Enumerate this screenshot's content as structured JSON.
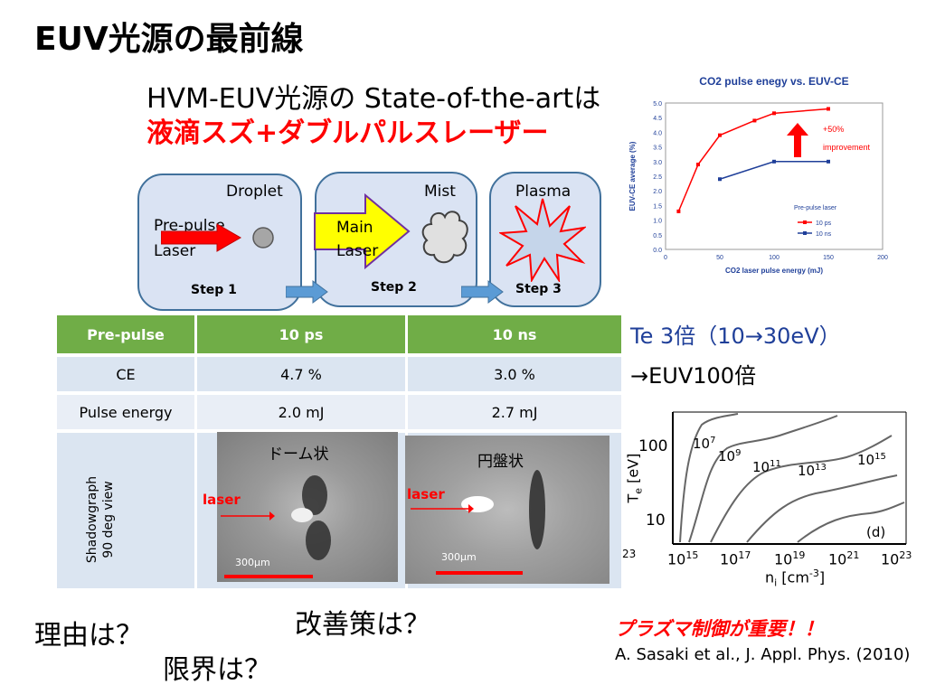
{
  "title": "EUV光源の最前線",
  "subtitle_line1": "HVM-EUV光源の State-of-the-artは",
  "subtitle_line2": "液滴スズ+ダブルパルスレーザー",
  "steps": {
    "step1": {
      "label": "Step 1",
      "droplet": "Droplet",
      "prepulse": "Pre-pulse",
      "laser": "Laser"
    },
    "step2": {
      "label": "Step 2",
      "mist": "Mist",
      "main": "Main",
      "laser": "Laser"
    },
    "step3": {
      "label": "Step 3",
      "plasma": "Plasma"
    }
  },
  "table": {
    "headers": [
      "Pre-pulse",
      "10 ps",
      "10 ns"
    ],
    "rows": [
      [
        "CE",
        "4.7 %",
        "3.0 %"
      ],
      [
        "Pulse energy",
        "2.0 mJ",
        "2.7 mJ"
      ]
    ],
    "shadow_label_1": "Shadowgraph",
    "shadow_label_2": "90 deg view",
    "img1_title": "ドーム状",
    "img2_title": "円盤状",
    "laser": "laser",
    "scale": "300μm"
  },
  "chart_data": {
    "type": "line",
    "title": "CO2 pulse enegy vs. EUV-CE",
    "xlabel": "CO2 laser pulse energy (mJ)",
    "ylabel": "EUV-CE average (%)",
    "xlim": [
      0,
      200
    ],
    "ylim": [
      0,
      5.0
    ],
    "xticks": [
      "0",
      "50",
      "100",
      "150",
      "200"
    ],
    "yticks": [
      "0.0",
      "0.5",
      "1.0",
      "1.5",
      "2.0",
      "2.5",
      "3.0",
      "3.5",
      "4.0",
      "4.5",
      "5.0"
    ],
    "series": [
      {
        "name": "10 ps",
        "color": "#ff0000",
        "points": [
          [
            12,
            1.3
          ],
          [
            30,
            2.9
          ],
          [
            50,
            3.9
          ],
          [
            82,
            4.4
          ],
          [
            100,
            4.65
          ],
          [
            150,
            4.8
          ]
        ]
      },
      {
        "name": "10 ns",
        "color": "#1f3f99",
        "points": [
          [
            50,
            2.4
          ],
          [
            100,
            3.0
          ],
          [
            150,
            3.0
          ]
        ]
      }
    ],
    "annotation_pre": "Pre-pulse  laser",
    "improve1": "+50%",
    "improve2": "improvement"
  },
  "te_text_1": "Te 3倍（10→30eV）",
  "te_text_2": "→EUV100倍",
  "contour": {
    "ylabel": "T",
    "ylabel_sub": "e",
    "ylabel_unit": " [eV]",
    "xlabel": "n",
    "xlabel_sub": "i",
    "xlabel_unit": " [cm",
    "xlabel_sup": "-3",
    "xlabel_end": "]",
    "y100": "100",
    "y10": "10",
    "x15": "10",
    "x15s": "15",
    "x17": "10",
    "x17s": "17",
    "x19": "10",
    "x19s": "19",
    "x21": "10",
    "x21s": "21",
    "x23": "10",
    "x23s": "23",
    "left23": "23",
    "c7": "10",
    "c7s": "7",
    "c9": "10",
    "c9s": "9",
    "c11": "10",
    "c11s": "11",
    "c13": "10",
    "c13s": "13",
    "c15": "10",
    "c15s": "15",
    "panel": "(d)"
  },
  "q_kaizen": "改善策は？",
  "q_riyuu": "理由は？",
  "q_genkai": "限界は？",
  "plasma_control": "プラズマ制御が重要！！",
  "reference": "A. Sasaki et al., J. Appl. Phys. (2010)"
}
